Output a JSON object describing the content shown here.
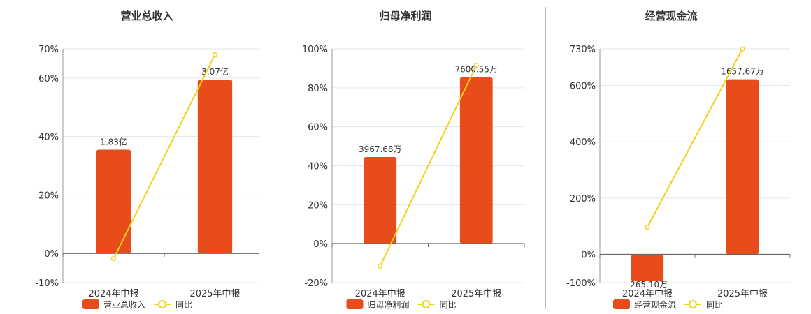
{
  "chart_data": [
    {
      "type": "bar",
      "title": "营业总收入",
      "categories": [
        "2024年中报",
        "2025年中报"
      ],
      "series": [
        {
          "name": "营业总收入",
          "kind": "bar",
          "axis": "percent",
          "values": [
            35.5,
            59.5
          ],
          "labels": [
            "1.83亿",
            "3.07亿"
          ]
        },
        {
          "name": "同比",
          "kind": "line",
          "axis": "percent",
          "values": [
            -1.8,
            68.0
          ]
        }
      ],
      "ylim": [
        -10,
        70
      ],
      "yticks": [
        -10,
        0,
        20,
        40,
        60,
        70
      ],
      "ytick_labels": [
        "-10%",
        "0%",
        "20%",
        "40%",
        "60%",
        "70%"
      ],
      "colors": {
        "bar": "#e84c1a",
        "line": "#f2d11b"
      },
      "legend": "bottom-center"
    },
    {
      "type": "bar",
      "title": "归母净利润",
      "categories": [
        "2024年中报",
        "2025年中报"
      ],
      "series": [
        {
          "name": "归母净利润",
          "kind": "bar",
          "axis": "percent",
          "values": [
            44.5,
            85.5
          ],
          "labels": [
            "3967.68万",
            "7600.55万"
          ]
        },
        {
          "name": "同比",
          "kind": "line",
          "axis": "percent",
          "values": [
            -11.5,
            91.5
          ]
        }
      ],
      "ylim": [
        -20,
        100
      ],
      "yticks": [
        -20,
        0,
        20,
        40,
        60,
        80,
        100
      ],
      "ytick_labels": [
        "-20%",
        "0%",
        "20%",
        "40%",
        "60%",
        "80%",
        "100%"
      ],
      "colors": {
        "bar": "#e84c1a",
        "line": "#f2d11b"
      },
      "legend": "bottom-center"
    },
    {
      "type": "bar",
      "title": "经营现金流",
      "categories": [
        "2024年中报",
        "2025年中报"
      ],
      "series": [
        {
          "name": "经营现金流",
          "kind": "bar",
          "axis": "percent",
          "values": [
            -95,
            622
          ],
          "labels": [
            "-265.10万",
            "1657.67万"
          ]
        },
        {
          "name": "同比",
          "kind": "line",
          "axis": "percent",
          "values": [
            97,
            730
          ]
        }
      ],
      "ylim": [
        -100,
        730
      ],
      "yticks": [
        -100,
        0,
        200,
        400,
        600,
        730
      ],
      "ytick_labels": [
        "-100%",
        "0%",
        "200%",
        "400%",
        "600%",
        "730%"
      ],
      "colors": {
        "bar": "#e84c1a",
        "line": "#f2d11b"
      },
      "legend": "bottom-center"
    }
  ]
}
